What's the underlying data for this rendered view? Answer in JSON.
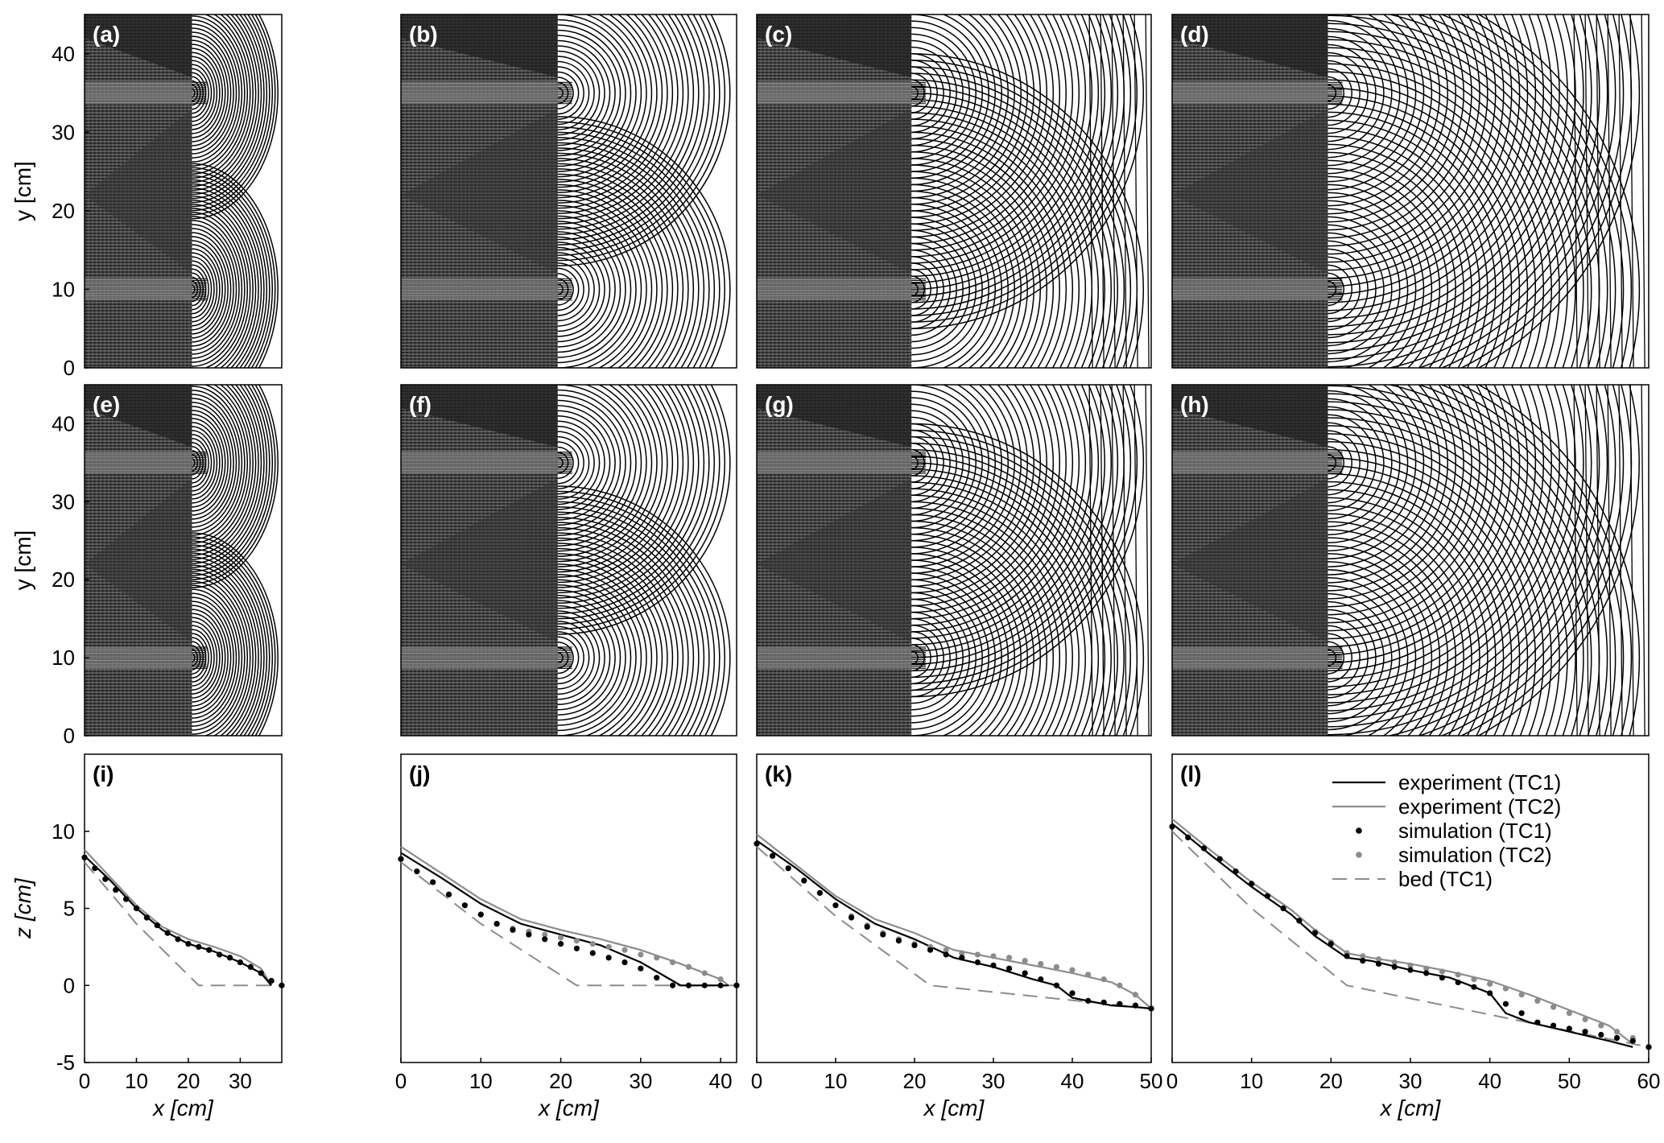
{
  "chart_data": [
    {
      "type": "contour",
      "panel": "(a)",
      "ylabel": "y [cm]",
      "ylim": [
        0,
        45
      ],
      "yticks": [
        "0",
        "10",
        "20",
        "30",
        "40"
      ],
      "front_x": 36,
      "source_x": 20
    },
    {
      "type": "contour",
      "panel": "(b)",
      "ylim": [
        0,
        45
      ],
      "front_x": 42,
      "source_x": 20
    },
    {
      "type": "contour",
      "panel": "(c)",
      "ylim": [
        0,
        45
      ],
      "front_x": 50,
      "source_x": 20
    },
    {
      "type": "contour",
      "panel": "(d)",
      "ylim": [
        0,
        45
      ],
      "front_x": 60,
      "source_x": 20
    },
    {
      "type": "contour",
      "panel": "(e)",
      "ylabel": "y [cm]",
      "ylim": [
        0,
        45
      ],
      "yticks": [
        "0",
        "10",
        "20",
        "30",
        "40"
      ],
      "front_x": 36,
      "source_x": 20
    },
    {
      "type": "contour",
      "panel": "(f)",
      "ylim": [
        0,
        45
      ],
      "front_x": 42,
      "source_x": 20
    },
    {
      "type": "contour",
      "panel": "(g)",
      "ylim": [
        0,
        45
      ],
      "front_x": 50,
      "source_x": 20
    },
    {
      "type": "contour",
      "panel": "(h)",
      "ylim": [
        0,
        45
      ],
      "front_x": 60,
      "source_x": 20
    },
    {
      "type": "line",
      "panel": "(i)",
      "xlabel": "x [cm]",
      "ylabel": "z [cm]",
      "xlim": [
        0,
        38
      ],
      "ylim": [
        -5,
        15
      ],
      "xticks": [
        "0",
        "10",
        "20",
        "30"
      ],
      "yticks": [
        "-5",
        "0",
        "5",
        "10"
      ],
      "series": [
        {
          "name": "experiment (TC1)",
          "x": [
            0,
            5,
            10,
            15,
            20,
            25,
            30,
            34,
            36
          ],
          "y": [
            8.4,
            6.8,
            5.0,
            3.6,
            2.7,
            2.2,
            1.5,
            0.8,
            0
          ]
        },
        {
          "name": "experiment (TC2)",
          "x": [
            0,
            5,
            10,
            15,
            20,
            25,
            30,
            34,
            36
          ],
          "y": [
            8.8,
            7.0,
            5.2,
            3.8,
            3.0,
            2.5,
            1.9,
            1.1,
            0
          ]
        },
        {
          "name": "simulation (TC1)",
          "x": [
            0,
            2,
            4,
            6,
            8,
            10,
            12,
            14,
            16,
            18,
            20,
            22,
            24,
            26,
            28,
            30,
            32,
            34,
            36,
            38
          ],
          "y": [
            8.3,
            7.6,
            6.9,
            6.2,
            5.6,
            5.0,
            4.4,
            3.9,
            3.4,
            3.0,
            2.7,
            2.5,
            2.3,
            2.0,
            1.8,
            1.5,
            1.2,
            0.8,
            0.3,
            0
          ]
        },
        {
          "name": "simulation (TC2)",
          "x": [
            0,
            2,
            4,
            6,
            8,
            10,
            12,
            14,
            16,
            18,
            20,
            22,
            24,
            26,
            28,
            30,
            32,
            34,
            36,
            38
          ],
          "y": [
            8.3,
            7.6,
            6.9,
            6.2,
            5.6,
            5.0,
            4.4,
            3.9,
            3.4,
            3.0,
            2.7,
            2.5,
            2.3,
            2.0,
            1.8,
            1.5,
            1.2,
            0.8,
            0.3,
            0
          ]
        },
        {
          "name": "bed (TC1)",
          "x": [
            0,
            10,
            22,
            38
          ],
          "y": [
            8.0,
            4.0,
            0,
            0
          ]
        }
      ]
    },
    {
      "type": "line",
      "panel": "(j)",
      "xlabel": "x [cm]",
      "xlim": [
        0,
        42
      ],
      "ylim": [
        -5,
        15
      ],
      "xticks": [
        "0",
        "10",
        "20",
        "30",
        "40"
      ],
      "series": [
        {
          "name": "experiment (TC1)",
          "x": [
            0,
            5,
            10,
            15,
            20,
            25,
            30,
            33,
            35,
            40,
            41
          ],
          "y": [
            8.6,
            7.0,
            5.3,
            4.0,
            3.3,
            2.6,
            1.5,
            0.6,
            0,
            0,
            0
          ]
        },
        {
          "name": "experiment (TC2)",
          "x": [
            0,
            5,
            10,
            15,
            20,
            25,
            30,
            35,
            40,
            41
          ],
          "y": [
            9.0,
            7.3,
            5.6,
            4.3,
            3.6,
            3.0,
            2.3,
            1.4,
            0.4,
            0
          ]
        },
        {
          "name": "simulation (TC1)",
          "x": [
            0,
            2,
            4,
            6,
            8,
            10,
            12,
            14,
            16,
            18,
            20,
            22,
            24,
            26,
            28,
            30,
            32,
            34,
            36,
            38,
            40,
            42
          ],
          "y": [
            8.2,
            7.4,
            6.7,
            5.9,
            5.2,
            4.6,
            4.0,
            3.6,
            3.3,
            3.0,
            2.7,
            2.4,
            2.1,
            1.8,
            1.5,
            1.1,
            0.5,
            0,
            0,
            0,
            0,
            0
          ]
        },
        {
          "name": "simulation (TC2)",
          "x": [
            0,
            2,
            4,
            6,
            8,
            10,
            12,
            14,
            16,
            18,
            20,
            22,
            24,
            26,
            28,
            30,
            32,
            34,
            36,
            38,
            40,
            42
          ],
          "y": [
            8.2,
            7.4,
            6.7,
            5.9,
            5.2,
            4.6,
            4.0,
            3.7,
            3.5,
            3.3,
            3.1,
            2.9,
            2.7,
            2.5,
            2.3,
            2.0,
            1.8,
            1.5,
            1.2,
            0.8,
            0.4,
            0
          ]
        },
        {
          "name": "bed (TC1)",
          "x": [
            0,
            10,
            22,
            42
          ],
          "y": [
            8.0,
            4.0,
            0,
            0
          ]
        }
      ]
    },
    {
      "type": "line",
      "panel": "(k)",
      "xlabel": "x [cm]",
      "xlim": [
        0,
        50
      ],
      "ylim": [
        -5,
        15
      ],
      "xticks": [
        "0",
        "10",
        "20",
        "30",
        "40",
        "50"
      ],
      "series": [
        {
          "name": "experiment (TC1)",
          "x": [
            0,
            5,
            10,
            15,
            20,
            25,
            30,
            35,
            38,
            40,
            42,
            45,
            48,
            50
          ],
          "y": [
            9.4,
            7.6,
            5.6,
            4.0,
            3.0,
            1.8,
            1.2,
            0.4,
            0,
            -0.8,
            -1.0,
            -1.3,
            -1.4,
            -1.5
          ]
        },
        {
          "name": "experiment (TC2)",
          "x": [
            0,
            5,
            10,
            15,
            20,
            25,
            30,
            35,
            40,
            45,
            48,
            50
          ],
          "y": [
            9.8,
            7.8,
            5.8,
            4.3,
            3.4,
            2.3,
            1.8,
            1.3,
            0.8,
            0.2,
            -0.6,
            -1.5
          ]
        },
        {
          "name": "simulation (TC1)",
          "x": [
            0,
            2,
            4,
            6,
            8,
            10,
            12,
            14,
            16,
            18,
            20,
            22,
            24,
            26,
            28,
            30,
            32,
            34,
            36,
            38,
            40,
            42,
            44,
            46,
            48,
            50
          ],
          "y": [
            9.2,
            8.4,
            7.6,
            6.8,
            6.0,
            5.2,
            4.4,
            3.8,
            3.3,
            2.9,
            2.6,
            2.3,
            2.0,
            1.8,
            1.5,
            1.3,
            1.1,
            0.8,
            0.4,
            0,
            -0.5,
            -1.0,
            -1.1,
            -1.2,
            -1.3,
            -1.5
          ]
        },
        {
          "name": "simulation (TC2)",
          "x": [
            0,
            2,
            4,
            6,
            8,
            10,
            12,
            14,
            16,
            18,
            20,
            22,
            24,
            26,
            28,
            30,
            32,
            34,
            36,
            38,
            40,
            42,
            44,
            46,
            48,
            50
          ],
          "y": [
            9.2,
            8.4,
            7.6,
            6.8,
            6.0,
            5.2,
            4.5,
            3.9,
            3.4,
            3.0,
            2.7,
            2.5,
            2.3,
            2.1,
            2.0,
            1.9,
            1.8,
            1.6,
            1.4,
            1.2,
            1.0,
            0.7,
            0.4,
            0,
            -0.6,
            -1.5
          ]
        },
        {
          "name": "bed (TC1)",
          "x": [
            0,
            10,
            22,
            50
          ],
          "y": [
            9.0,
            4.5,
            0,
            -1.5
          ]
        }
      ]
    },
    {
      "type": "line",
      "panel": "(l)",
      "xlabel": "x [cm]",
      "xlim": [
        0,
        60
      ],
      "ylim": [
        -5,
        15
      ],
      "xticks": [
        "0",
        "10",
        "20",
        "30",
        "40",
        "50",
        "60"
      ],
      "series": [
        {
          "name": "experiment (TC1)",
          "x": [
            0,
            5,
            10,
            15,
            18,
            22,
            25,
            30,
            35,
            40,
            42,
            45,
            50,
            55,
            58
          ],
          "y": [
            10.5,
            8.4,
            6.4,
            4.6,
            3.2,
            1.8,
            1.6,
            1.0,
            0.5,
            -0.5,
            -1.8,
            -2.4,
            -3.0,
            -3.6,
            -4.0
          ]
        },
        {
          "name": "experiment (TC2)",
          "x": [
            0,
            5,
            10,
            15,
            18,
            22,
            25,
            30,
            35,
            40,
            45,
            50,
            55,
            58
          ],
          "y": [
            10.8,
            8.7,
            6.7,
            4.9,
            3.6,
            2.1,
            1.8,
            1.4,
            0.9,
            0.3,
            -0.6,
            -1.6,
            -2.6,
            -3.8
          ]
        },
        {
          "name": "simulation (TC1)",
          "x": [
            0,
            2,
            4,
            6,
            8,
            10,
            12,
            14,
            16,
            18,
            20,
            22,
            24,
            26,
            28,
            30,
            32,
            34,
            36,
            38,
            40,
            42,
            44,
            46,
            48,
            50,
            52,
            54,
            56,
            58,
            60
          ],
          "y": [
            10.3,
            9.6,
            8.9,
            8.2,
            7.4,
            6.6,
            5.8,
            5.0,
            4.2,
            3.4,
            2.7,
            1.9,
            1.6,
            1.4,
            1.2,
            1.0,
            0.8,
            0.5,
            0.2,
            -0.1,
            -0.5,
            -1.2,
            -1.8,
            -2.4,
            -2.6,
            -2.8,
            -3.0,
            -3.2,
            -3.4,
            -3.6,
            -4.0
          ]
        },
        {
          "name": "simulation (TC2)",
          "x": [
            0,
            2,
            4,
            6,
            8,
            10,
            12,
            14,
            16,
            18,
            20,
            22,
            24,
            26,
            28,
            30,
            32,
            34,
            36,
            38,
            40,
            42,
            44,
            46,
            48,
            50,
            52,
            54,
            56,
            58,
            60
          ],
          "y": [
            10.3,
            9.6,
            8.9,
            8.2,
            7.4,
            6.6,
            5.8,
            5.0,
            4.2,
            3.5,
            2.8,
            2.1,
            1.9,
            1.7,
            1.5,
            1.3,
            1.1,
            0.9,
            0.7,
            0.4,
            0.1,
            -0.2,
            -0.6,
            -1.0,
            -1.4,
            -1.8,
            -2.2,
            -2.6,
            -3.0,
            -3.4,
            -4.0
          ]
        },
        {
          "name": "bed (TC1)",
          "x": [
            0,
            10,
            22,
            60
          ],
          "y": [
            10.0,
            5.0,
            0,
            -4.0
          ]
        }
      ]
    }
  ],
  "legend": {
    "items": [
      {
        "label": "experiment (TC1)",
        "style": "solid-black"
      },
      {
        "label": "experiment (TC2)",
        "style": "solid-gray"
      },
      {
        "label": "simulation (TC1)",
        "style": "dot-black"
      },
      {
        "label": "simulation (TC2)",
        "style": "dot-gray"
      },
      {
        "label": "bed (TC1)",
        "style": "dashed-gray"
      }
    ]
  },
  "colors": {
    "tc1": "#000000",
    "tc2": "#8c8c8c",
    "bed": "#8c8c8c",
    "dark": "#2b2b2b"
  }
}
